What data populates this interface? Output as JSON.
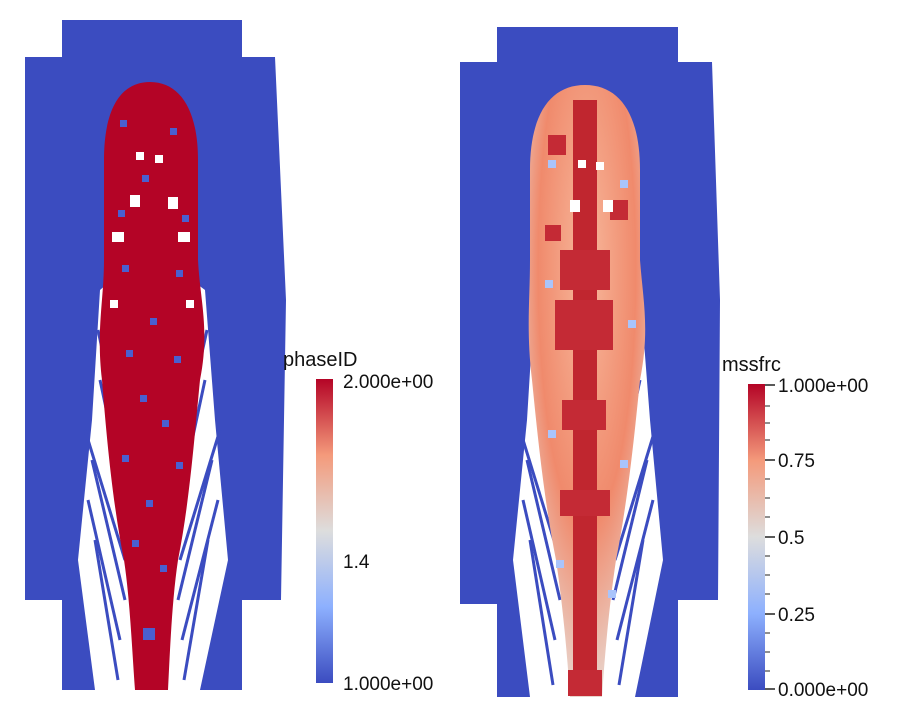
{
  "colormap": {
    "low": "#3b4cc0",
    "mid": "#dddddd",
    "high": "#b40426"
  },
  "panels": [
    {
      "name": "phaseID",
      "colorbar": {
        "title": "phaseID",
        "ticks": [
          "2.000e+00",
          "1.4",
          "1.000e+00"
        ],
        "tick_values": [
          2.0,
          1.4,
          1.0
        ],
        "range": [
          1.0,
          2.0
        ]
      }
    },
    {
      "name": "mssfrc",
      "colorbar": {
        "title": "mssfrc",
        "ticks": [
          "1.000e+00",
          "0.75",
          "0.5",
          "0.25",
          "0.000e+00"
        ],
        "tick_values": [
          1.0,
          0.75,
          0.5,
          0.25,
          0.0
        ],
        "range": [
          0.0,
          1.0
        ]
      }
    }
  ]
}
